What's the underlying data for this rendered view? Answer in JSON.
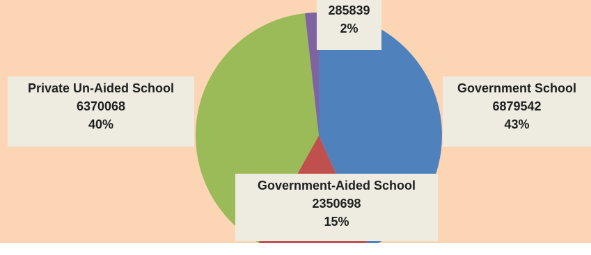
{
  "chart_data": {
    "type": "pie",
    "title": "",
    "slices": [
      {
        "label": "Government School",
        "value": 6879542,
        "percent": "43%",
        "color": "#4f81bd"
      },
      {
        "label": "Government-Aided School",
        "value": 2350698,
        "percent": "15%",
        "color": "#c0504d"
      },
      {
        "label": "Private Un-Aided School",
        "value": 6370068,
        "percent": "40%",
        "color": "#9bbb59"
      },
      {
        "label": "",
        "value": 285839,
        "percent": "2%",
        "color": "#8064a2"
      }
    ],
    "background": "#fcd5b4",
    "label_background": "#eeece1"
  },
  "labels": {
    "gov": {
      "name": "Government School",
      "value": "6879542",
      "percent": "43%"
    },
    "aided": {
      "name": "Government-Aided School",
      "value": "2350698",
      "percent": "15%"
    },
    "priv": {
      "name": "Private Un-Aided School",
      "value": "6370068",
      "percent": "40%"
    },
    "other": {
      "value": "285839",
      "percent": "2%"
    }
  }
}
